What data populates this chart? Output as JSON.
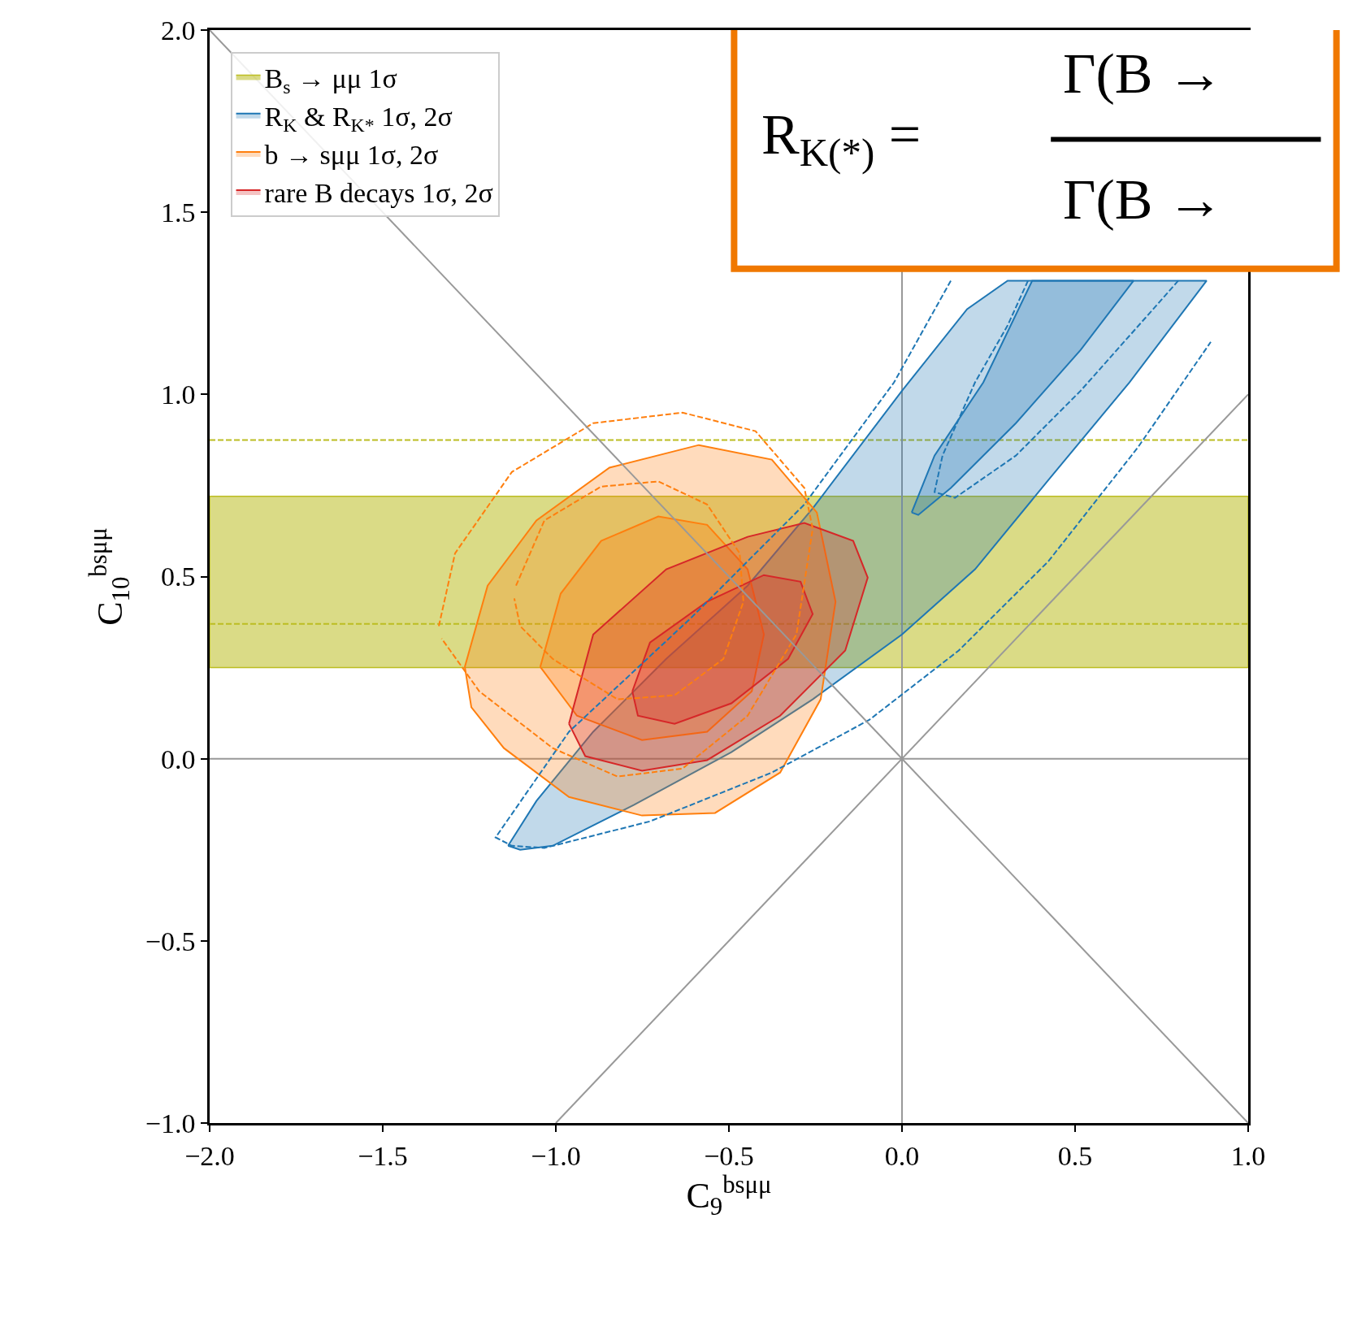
{
  "chart_data": {
    "type": "line",
    "xlabel": "C$_{9}$$^{bsμμ}$",
    "ylabel": "C$_{10}$$^{bsμμ}$",
    "xlim": [
      -2,
      1
    ],
    "ylim": [
      -1,
      2
    ],
    "xticks": [
      {
        "value": -2,
        "label": "−2.0"
      },
      {
        "value": -1.5,
        "label": "−1.5"
      },
      {
        "value": -1,
        "label": "−1.0"
      },
      {
        "value": -0.5,
        "label": "−0.5"
      },
      {
        "value": 0,
        "label": "0.0"
      },
      {
        "value": 0.5,
        "label": "0.5"
      },
      {
        "value": 1,
        "label": "1.0"
      }
    ],
    "yticks": [
      {
        "value": -1,
        "label": "−1.0"
      },
      {
        "value": -0.5,
        "label": "−0.5"
      },
      {
        "value": 0,
        "label": "0.0"
      },
      {
        "value": 0.5,
        "label": "0.5"
      },
      {
        "value": 1,
        "label": "1.0"
      },
      {
        "value": 1.5,
        "label": "1.5"
      },
      {
        "value": 2,
        "label": "2.0"
      }
    ],
    "legend": "top left",
    "bands": [
      {
        "axis": "y",
        "from": 0.25,
        "to": 0.72,
        "label": "B$_{s}$ → μμ 1σ",
        "color": "#bcbd22"
      }
    ],
    "ref_lines": [
      {
        "axis": "y",
        "value": 0.37,
        "color": "#bcbd22",
        "line_style": "dashed"
      },
      {
        "axis": "y",
        "value": 0.875,
        "color": "#bcbd22",
        "line_style": "dashed"
      },
      {
        "axis": "x",
        "value": 0,
        "color": "#999999",
        "line_style": "solid"
      },
      {
        "axis": "y",
        "value": 0,
        "color": "#999999",
        "line_style": "solid"
      }
    ],
    "series": [
      {
        "name": "R$_{K}$ & R$_{K*}$ 1σ, 2σ",
        "type": "area",
        "color": "#1f77b4",
        "line_style": "solid",
        "x": [
          -1.138,
          -1.056,
          -0.892,
          -0.681,
          -0.446,
          -0.258,
          0.0,
          0.188,
          0.305,
          0.88,
          0.657,
          0.423,
          0.211,
          0.0,
          -0.258,
          -0.493,
          -0.775,
          -1.009,
          -1.103,
          -1.138
        ],
        "values": [
          -0.239,
          -0.116,
          0.074,
          0.274,
          0.475,
          0.687,
          1.01,
          1.234,
          1.312,
          1.312,
          1.033,
          0.765,
          0.52,
          0.341,
          0.163,
          0.018,
          -0.127,
          -0.239,
          -0.25,
          -0.239
        ]
      },
      {
        "type": "area",
        "color": "#1f77b4",
        "line_style": "solid",
        "x": [
          0.028,
          0.094,
          0.235,
          0.376,
          0.669,
          0.516,
          0.329,
          0.141,
          0.047,
          0.028
        ],
        "values": [
          0.676,
          0.832,
          1.033,
          1.312,
          1.312,
          1.122,
          0.921,
          0.743,
          0.669,
          0.676
        ]
      },
      {
        "name": "b → sμμ 1σ, 2σ",
        "type": "area",
        "color": "#ff7f0e",
        "line_style": "solid",
        "x": [
          -1.263,
          -1.197,
          -1.056,
          -0.845,
          -0.587,
          -0.376,
          -0.246,
          -0.192,
          -0.235,
          -0.352,
          -0.54,
          -0.751,
          -0.962,
          -1.15,
          -1.244,
          -1.263
        ],
        "values": [
          0.252,
          0.475,
          0.654,
          0.799,
          0.861,
          0.821,
          0.676,
          0.431,
          0.163,
          -0.038,
          -0.149,
          -0.156,
          -0.105,
          0.029,
          0.141,
          0.252
        ]
      },
      {
        "type": "area",
        "color": "#ff7f0e",
        "line_style": "solid",
        "x": [
          -1.045,
          -0.986,
          -0.869,
          -0.704,
          -0.563,
          -0.446,
          -0.399,
          -0.434,
          -0.563,
          -0.751,
          -0.939,
          -1.045
        ],
        "values": [
          0.252,
          0.453,
          0.598,
          0.665,
          0.642,
          0.52,
          0.341,
          0.185,
          0.074,
          0.051,
          0.118,
          0.252
        ]
      },
      {
        "name": "rare B decays 1σ, 2σ",
        "type": "area",
        "color": "#d62728",
        "line_style": "solid",
        "x": [
          -0.962,
          -0.892,
          -0.681,
          -0.446,
          -0.282,
          -0.141,
          -0.099,
          -0.164,
          -0.352,
          -0.563,
          -0.751,
          -0.915,
          -0.962
        ],
        "values": [
          0.096,
          0.341,
          0.52,
          0.609,
          0.647,
          0.598,
          0.497,
          0.297,
          0.118,
          -0.004,
          -0.033,
          0.007,
          0.096
        ]
      },
      {
        "type": "area",
        "color": "#d62728",
        "line_style": "solid",
        "x": [
          -0.779,
          -0.728,
          -0.563,
          -0.399,
          -0.293,
          -0.258,
          -0.329,
          -0.493,
          -0.657,
          -0.763,
          -0.779
        ],
        "values": [
          0.185,
          0.319,
          0.431,
          0.504,
          0.486,
          0.397,
          0.274,
          0.152,
          0.096,
          0.118,
          0.185
        ]
      },
      {
        "type": "line",
        "color": "#1f77b4",
        "line_style": "dashed",
        "x": [
          0.141,
          -0.023,
          -0.282,
          -0.61,
          -0.962,
          -1.174,
          -1.127,
          -1.033,
          -0.728,
          -0.376,
          -0.094,
          0.164,
          0.423,
          0.681,
          0.892
        ],
        "values": [
          1.312,
          1.033,
          0.698,
          0.386,
          0.074,
          -0.216,
          -0.239,
          -0.245,
          -0.172,
          -0.038,
          0.107,
          0.297,
          0.542,
          0.854,
          1.144
        ]
      },
      {
        "type": "line",
        "color": "#1f77b4",
        "line_style": "dashed",
        "x": [
          0.364,
          0.305,
          0.211,
          0.117,
          0.094,
          0.153,
          0.329,
          0.516,
          0.704,
          0.798
        ],
        "values": [
          1.312,
          1.189,
          1.033,
          0.832,
          0.732,
          0.716,
          0.832,
          1.01,
          1.211,
          1.312
        ]
      },
      {
        "type": "line",
        "color": "#ff7f0e",
        "line_style": "dashed",
        "x": [
          -1.338,
          -1.291,
          -1.127,
          -0.892,
          -0.634,
          -0.423,
          -0.282,
          -0.258,
          -0.305,
          -0.446,
          -0.634,
          -0.822,
          -1.009,
          -1.221,
          -1.33
        ],
        "values": [
          0.364,
          0.564,
          0.787,
          0.921,
          0.95,
          0.899,
          0.743,
          0.631,
          0.341,
          0.118,
          -0.027,
          -0.049,
          0.029,
          0.185,
          0.33
        ]
      },
      {
        "type": "line",
        "color": "#ff7f0e",
        "line_style": "dashed",
        "x": [
          -1.115,
          -1.033,
          -0.869,
          -0.704,
          -0.563,
          -0.469,
          -0.458,
          -0.516,
          -0.657,
          -0.822,
          -1.009,
          -1.103,
          -1.12
        ],
        "values": [
          0.475,
          0.654,
          0.747,
          0.761,
          0.698,
          0.564,
          0.431,
          0.274,
          0.174,
          0.163,
          0.274,
          0.364,
          0.44
        ]
      },
      {
        "color": "#999999",
        "line_style": "solid",
        "x": [
          -2,
          1
        ],
        "values": [
          2,
          -1
        ]
      },
      {
        "color": "#999999",
        "line_style": "solid",
        "x": [
          -1,
          1
        ],
        "values": [
          -1,
          1
        ]
      }
    ],
    "annotations": [
      "R$_{K(*)}$ =",
      "Γ(B →",
      "Γ(B →"
    ]
  }
}
